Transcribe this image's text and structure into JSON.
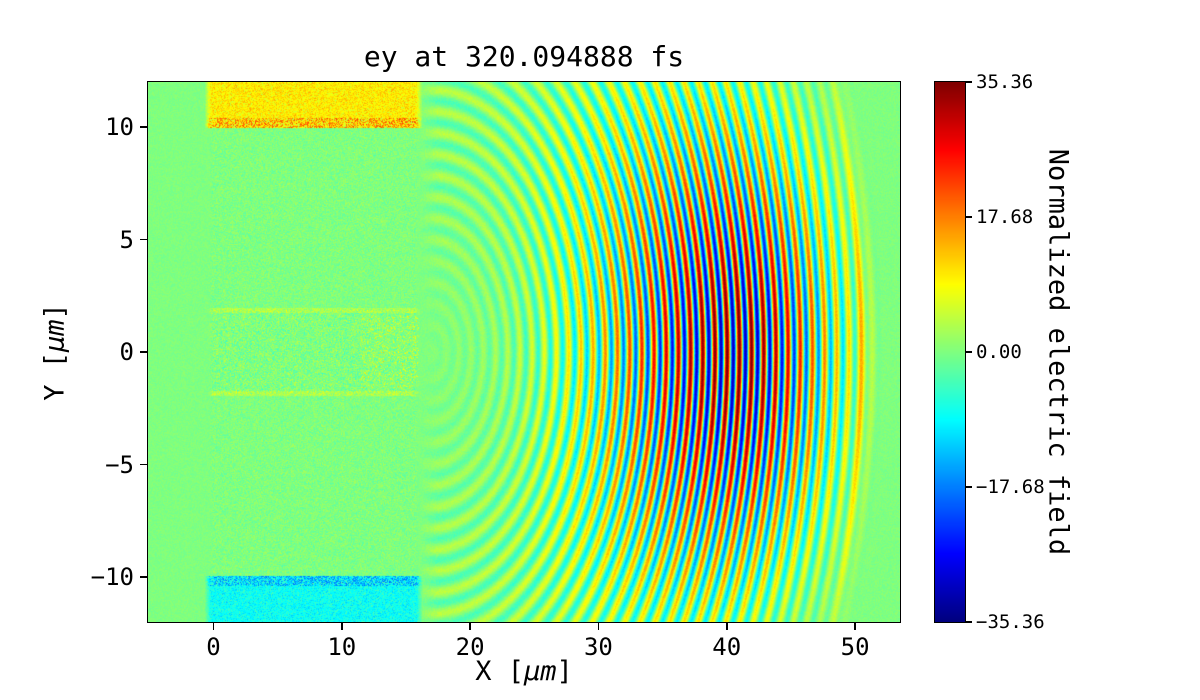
{
  "figure": {
    "title": "ey at 320.094888 fs"
  },
  "chart_data": {
    "type": "heatmap",
    "title": "ey at 320.094888 fs",
    "xlabel": "X [μm]",
    "ylabel": "Y [μm]",
    "xlabel_parts": {
      "pre": "X [",
      "mu": "μm",
      "post": "]"
    },
    "ylabel_parts": {
      "pre": "Y [",
      "mu": "μm",
      "post": "]"
    },
    "xlim": [
      -5.1,
      53.5
    ],
    "ylim": [
      -12,
      12
    ],
    "x_ticks": [
      0,
      10,
      20,
      30,
      40,
      50
    ],
    "x_tick_labels": [
      "0",
      "10",
      "20",
      "30",
      "40",
      "50"
    ],
    "y_ticks": [
      10,
      5,
      0,
      -5,
      -10
    ],
    "y_tick_labels": [
      "10",
      "5",
      "0",
      "−5",
      "−10"
    ],
    "grid": false,
    "legend": null,
    "colormap": "jet",
    "clim": [
      -35.36,
      35.36
    ],
    "colorbar": {
      "label": "Normalized electric field",
      "side": "right",
      "tick_values": [
        35.36,
        17.68,
        0.0,
        -17.68,
        -35.36
      ],
      "tick_labels": [
        "35.36",
        "17.68",
        "0.00",
        "−17.68",
        "−35.36"
      ]
    },
    "field_summary": "Zero-field green background. A speckled plasma slab spans x≈0–15.7 μm over all y. A yellow band with an orange lower edge lies along y≈+10 to +12 μm (x≈0–15.7); a cyan band with a blue upper edge lies along y≈−10 to −12 μm. A noisy plasma channel of half-width ≈1.9 μm runs along y=0 with warm orange speckles near x≈12–16. Curved laser-wakefield wavefronts (alternating red/blue arcs, wavelength ≈0.95 μm, circular fronts centered near x≈17, y=0) fill x≈18–51 μm, strongest near y=0 for x≈33–46, fading to a faint yellow-green front arc near x≈50.",
    "render_params": {
      "background_noise": 1.2,
      "plasma": {
        "x0": 0.0,
        "x1": 15.7,
        "edge_fade": 0.4,
        "noise": 2.2,
        "channel_halfwidth": 1.9,
        "channel_noise": 3.0,
        "channel_edge_y": 1.85,
        "channel_edge_halfwidth": 0.1,
        "channel_edge_value": 3.0,
        "hot_x0": 11.5,
        "hot_x1": 16.0,
        "hot_halfwidth": 1.6,
        "hot_threshold": 0.3,
        "hot_max": 9.0
      },
      "top_band": {
        "x0": -0.2,
        "x1": 15.8,
        "edge_fade": 0.5,
        "y_start": 9.95,
        "edge_thickness": 0.45,
        "edge_value": 17.0,
        "body_value": 10.0,
        "body_noise": 3.0
      },
      "bottom_band": {
        "x0": -0.2,
        "x1": 15.8,
        "edge_fade": 0.5,
        "y_start": -9.95,
        "edge_thickness": 0.45,
        "edge_value": -15.0,
        "body_value": -8.0,
        "body_noise": 2.5
      },
      "wake": {
        "cx": 17.0,
        "wavelength": 0.95,
        "amplitude": 34.0,
        "bias": 2.5,
        "r_peak": 24.0,
        "sigma_in": 8.5,
        "sigma_out": 5.5,
        "r_cut": 33.5,
        "cut_width": 1.0,
        "y_sigma": 11.0,
        "x_min": 16.0,
        "x_fade": 1.5,
        "front_r": 33.6,
        "front_value": 7.0,
        "front_width": 0.6
      }
    }
  }
}
